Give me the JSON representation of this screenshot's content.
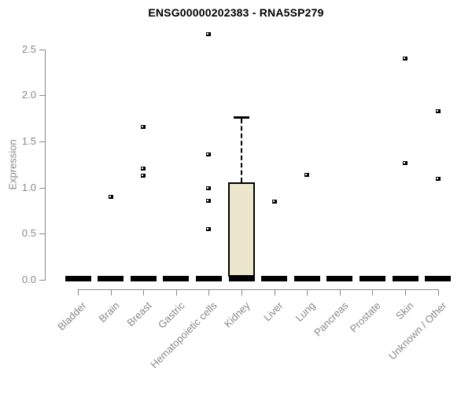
{
  "chart_data": {
    "type": "boxplot",
    "title": "ENSG00000202383 - RNA5SP279",
    "ylabel": "Expression",
    "xlabel": "",
    "ylim": [
      0,
      2.7
    ],
    "yticks": [
      "0.0",
      "0.5",
      "1.0",
      "1.5",
      "2.0",
      "2.5"
    ],
    "grid": false,
    "legend": "none",
    "categories": [
      "Bladder",
      "Brain",
      "Breast",
      "Gastric",
      "Hematopoietic cells",
      "Kidney",
      "Liver",
      "Lung",
      "Pancreas",
      "Prostate",
      "Skin",
      "Unknown / Other"
    ],
    "series": [
      {
        "category": "Bladder",
        "q1": 0,
        "median": 0,
        "q3": 0,
        "whisker_low": 0,
        "whisker_high": 0,
        "outliers": []
      },
      {
        "category": "Brain",
        "q1": 0,
        "median": 0,
        "q3": 0,
        "whisker_low": 0,
        "whisker_high": 0,
        "outliers": [
          0.9
        ]
      },
      {
        "category": "Breast",
        "q1": 0,
        "median": 0,
        "q3": 0,
        "whisker_low": 0,
        "whisker_high": 0,
        "outliers": [
          1.66,
          1.21,
          1.13
        ]
      },
      {
        "category": "Gastric",
        "q1": 0,
        "median": 0,
        "q3": 0,
        "whisker_low": 0,
        "whisker_high": 0,
        "outliers": []
      },
      {
        "category": "Hematopoietic cells",
        "q1": 0,
        "median": 0,
        "q3": 0,
        "whisker_low": 0,
        "whisker_high": 0,
        "outliers": [
          2.67,
          1.36,
          1.0,
          0.86,
          0.55
        ]
      },
      {
        "category": "Kidney",
        "q1": 0,
        "median": 0.02,
        "q3": 1.06,
        "whisker_low": 0,
        "whisker_high": 1.76,
        "outliers": []
      },
      {
        "category": "Liver",
        "q1": 0,
        "median": 0,
        "q3": 0,
        "whisker_low": 0,
        "whisker_high": 0,
        "outliers": [
          0.85
        ]
      },
      {
        "category": "Lung",
        "q1": 0,
        "median": 0,
        "q3": 0,
        "whisker_low": 0,
        "whisker_high": 0,
        "outliers": [
          1.14
        ]
      },
      {
        "category": "Pancreas",
        "q1": 0,
        "median": 0,
        "q3": 0,
        "whisker_low": 0,
        "whisker_high": 0,
        "outliers": []
      },
      {
        "category": "Prostate",
        "q1": 0,
        "median": 0,
        "q3": 0,
        "whisker_low": 0,
        "whisker_high": 0,
        "outliers": []
      },
      {
        "category": "Skin",
        "q1": 0,
        "median": 0,
        "q3": 0,
        "whisker_low": 0,
        "whisker_high": 0,
        "outliers": [
          2.4,
          1.27
        ]
      },
      {
        "category": "Unknown / Other",
        "q1": 0,
        "median": 0,
        "q3": 0,
        "whisker_low": 0,
        "whisker_high": 0,
        "outliers": [
          1.83,
          1.1
        ]
      }
    ],
    "colors": {
      "box_fill": "#ece7cc",
      "box_border": "#000000",
      "axis": "#888888",
      "tick_label": "#888888",
      "title": "#000000",
      "background": "#ffffff"
    }
  }
}
